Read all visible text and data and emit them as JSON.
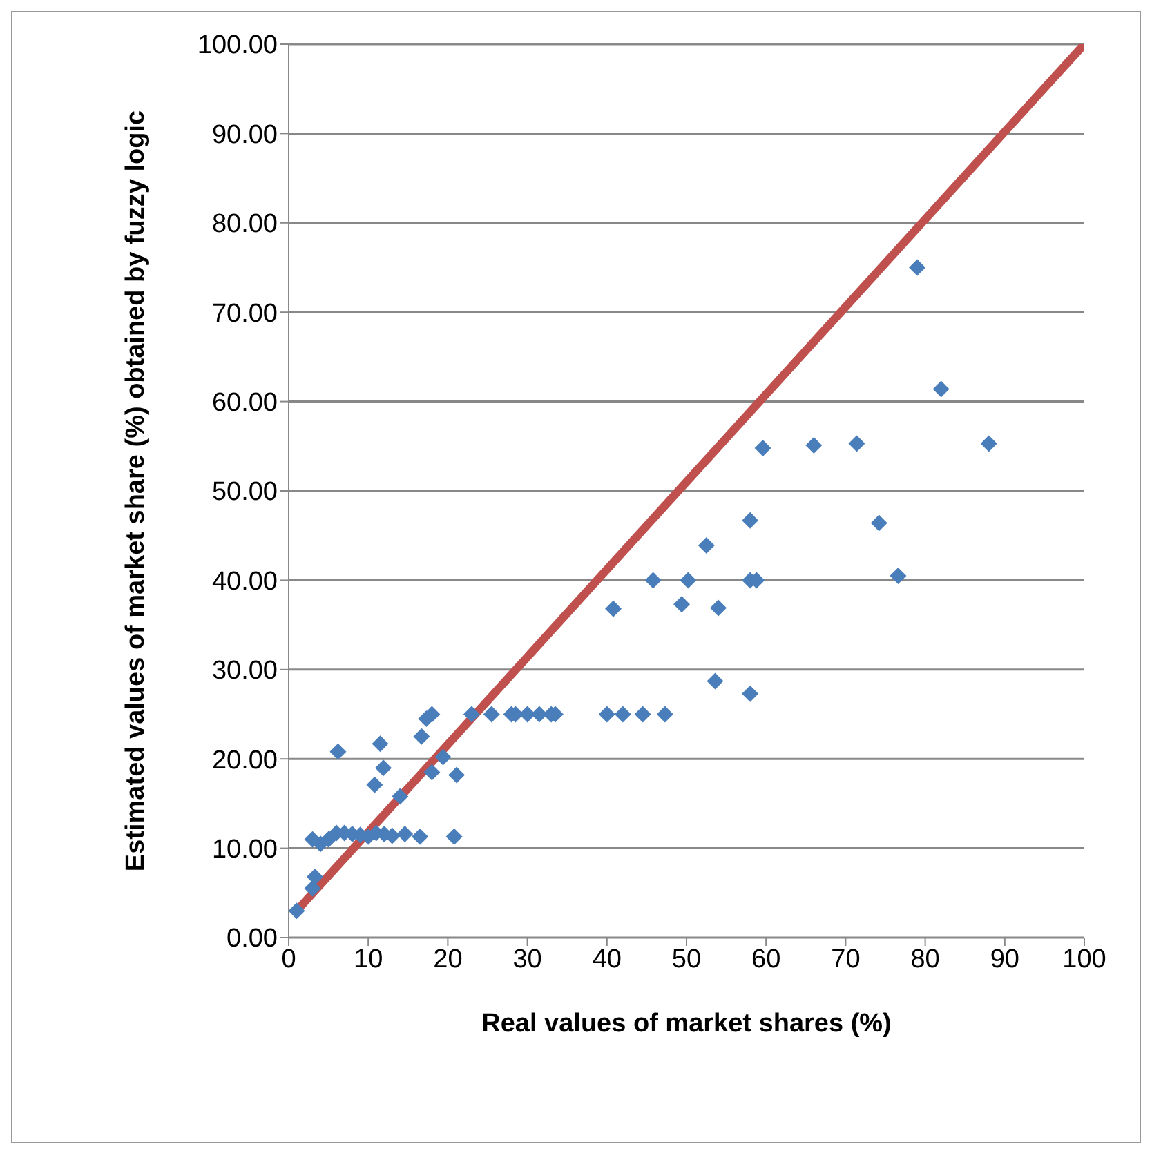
{
  "chart_data": {
    "type": "scatter",
    "xlabel": "Real values of market shares (%)",
    "ylabel": "Estimated values of market share (%) obtained by fuzzy logic",
    "xlim": [
      0,
      100
    ],
    "xticks": [
      0,
      10,
      20,
      30,
      40,
      50,
      60,
      70,
      80,
      90,
      100
    ],
    "ylim": [
      0,
      100
    ],
    "yticks": [
      {
        "value": 0,
        "label": "0.00"
      },
      {
        "value": 10,
        "label": "10.00"
      },
      {
        "value": 20,
        "label": "20.00"
      },
      {
        "value": 30,
        "label": "30.00"
      },
      {
        "value": 40,
        "label": "40.00"
      },
      {
        "value": 50,
        "label": "50.00"
      },
      {
        "value": 60,
        "label": "60.00"
      },
      {
        "value": 70,
        "label": "70.00"
      },
      {
        "value": 80,
        "label": "80.00"
      },
      {
        "value": 90,
        "label": "90.00"
      },
      {
        "value": 100,
        "label": "100.00"
      }
    ],
    "grid": "y",
    "legend": false,
    "marker": "diamond",
    "series": [
      {
        "color": "#4a7ebb",
        "x": [
          1,
          3,
          3.3,
          3,
          4,
          5,
          6,
          7,
          8,
          9,
          10,
          11,
          12,
          13,
          14.6,
          16.5,
          6.2,
          10.8,
          11.5,
          11.9,
          14,
          16.7,
          17.3,
          18,
          18,
          19.4,
          21.1,
          20.8,
          23,
          25.5,
          28,
          28.5,
          30,
          31.5,
          33,
          33.5,
          40,
          42,
          44.5,
          47.3,
          40.8,
          45.8,
          49.4,
          50.2,
          52.5,
          53.6,
          54,
          58,
          58,
          58.8,
          58,
          59.6,
          66,
          71.4,
          74.2,
          76.6,
          79,
          82,
          88
        ],
        "values": [
          3,
          11,
          6.8,
          5.5,
          10.5,
          11,
          11.7,
          11.7,
          11.6,
          11.5,
          11.3,
          11.7,
          11.6,
          11.4,
          11.6,
          11.3,
          20.8,
          17.1,
          21.7,
          19,
          15.8,
          22.5,
          24.5,
          25,
          18.5,
          20.2,
          18.2,
          11.3,
          25,
          25,
          25,
          25,
          25,
          25,
          25,
          25,
          25,
          25,
          25,
          25,
          36.8,
          40,
          37.3,
          40,
          43.9,
          28.7,
          36.9,
          46.7,
          40,
          40,
          27.3,
          54.8,
          55.1,
          55.3,
          46.4,
          40.5,
          75,
          61.4,
          55.3
        ]
      },
      {
        "type": "line",
        "color": "#c0504d",
        "line_style": "solid",
        "marker": "none",
        "x": [
          1,
          100
        ],
        "values": [
          3,
          100
        ]
      }
    ]
  }
}
